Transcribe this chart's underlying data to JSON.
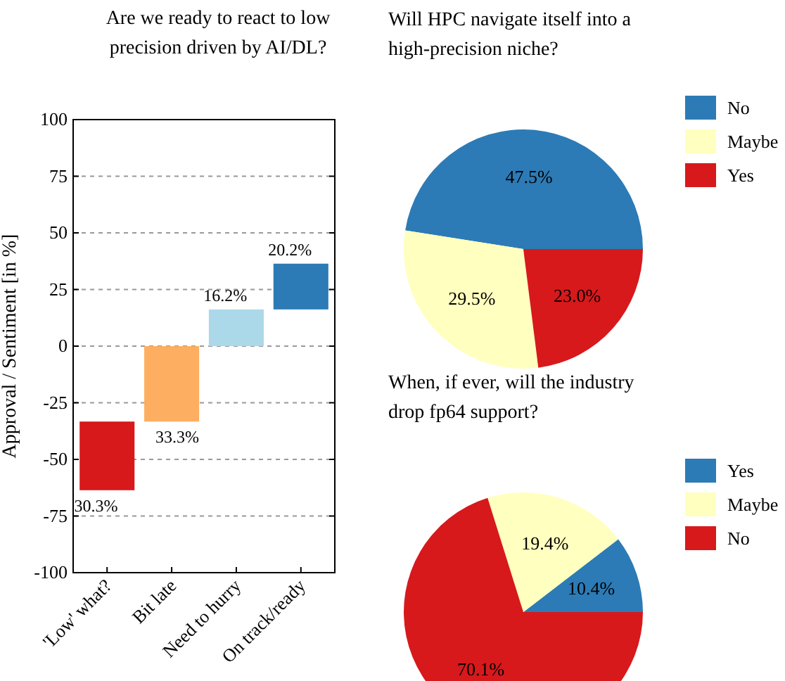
{
  "chart_data": [
    {
      "type": "bar",
      "title": "Are we ready to react to low precision driven by AI/DL?",
      "ylabel": "Approval / Sentiment [in %]",
      "categories": [
        "'Low' what?",
        "Bit late",
        "Need to hurry",
        "On track/ready"
      ],
      "values": [
        30.3,
        33.3,
        16.2,
        20.2
      ],
      "base": [
        -63.6,
        -33.3,
        0,
        16.2
      ],
      "colors": [
        "#d7191c",
        "#fdae61",
        "#abd9e9",
        "#2c7bb6"
      ],
      "value_labels": [
        "30.3%",
        "33.3%",
        "16.2%",
        "20.2%"
      ],
      "ylim": [
        -100,
        100
      ],
      "yticks": [
        -100,
        -75,
        -50,
        -25,
        0,
        25,
        50,
        75,
        100
      ],
      "grid": "y"
    },
    {
      "type": "pie",
      "title": "Will HPC navigate itself into a high-precision niche?",
      "categories": [
        "No",
        "Maybe",
        "Yes"
      ],
      "values": [
        47.5,
        29.5,
        23.0
      ],
      "colors": [
        "#2c7bb6",
        "#ffffbf",
        "#d7191c"
      ],
      "value_labels": [
        "47.5%",
        "29.5%",
        "23.0%"
      ],
      "legend": "right"
    },
    {
      "type": "pie",
      "title": "When, if ever, will the industry drop fp64 support?",
      "categories": [
        "Yes",
        "Maybe",
        "No"
      ],
      "values": [
        10.4,
        19.4,
        70.1
      ],
      "colors": [
        "#2c7bb6",
        "#ffffbf",
        "#d7191c"
      ],
      "value_labels": [
        "10.4%",
        "19.4%",
        "70.1%"
      ],
      "legend": "right"
    }
  ]
}
